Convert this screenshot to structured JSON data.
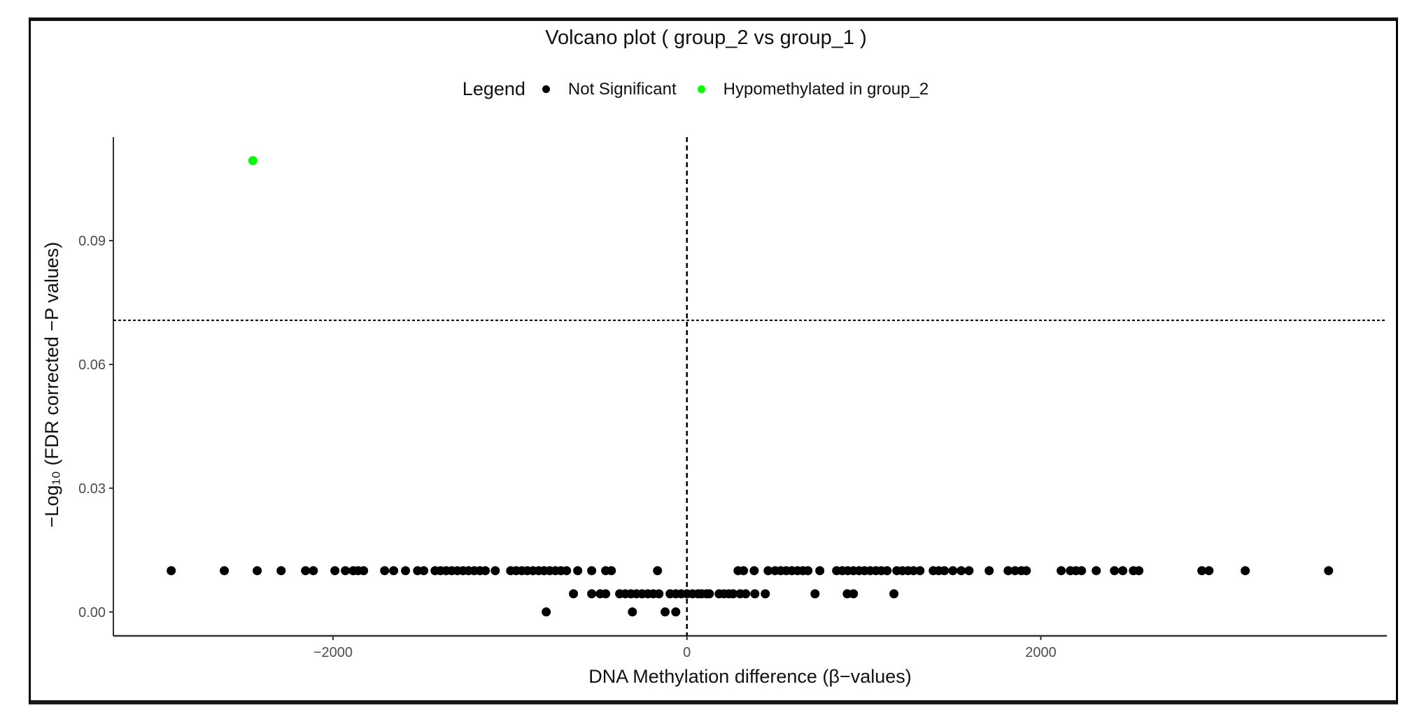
{
  "chart_data": {
    "type": "scatter",
    "title": "Volcano plot ( group_2 vs group_1 )",
    "xlabel": "DNA Methylation difference (β−values)",
    "ylabel": "−Log₁₀ (FDR corrected −P values)",
    "xlim": [
      -3241,
      3955
    ],
    "ylim": [
      -0.0058,
      0.1151
    ],
    "xticks": [
      -2000,
      0,
      2000
    ],
    "xtick_labels": [
      "−2000",
      "0",
      "2000"
    ],
    "yticks": [
      0.0,
      0.03,
      0.06,
      0.09
    ],
    "ytick_labels": [
      "0.00",
      "0.03",
      "0.06",
      "0.09"
    ],
    "grid": false,
    "legend": {
      "title": "Legend",
      "placement": "top",
      "entries": [
        {
          "label": "Not Significant",
          "color": "#000000"
        },
        {
          "label": "Hypomethylated in group_2",
          "color": "#00ff00"
        }
      ]
    },
    "reference_lines": {
      "vertical_x": 0,
      "horizontal_y": 0.0707
    },
    "series": [
      {
        "name": "Not Significant",
        "color": "#000000",
        "points": [
          [
            -2914,
            0.01
          ],
          [
            -2614,
            0.01
          ],
          [
            -2428,
            0.01
          ],
          [
            -2293,
            0.01
          ],
          [
            -2155,
            0.01
          ],
          [
            -2111,
            0.01
          ],
          [
            -1989,
            0.01
          ],
          [
            -1930,
            0.01
          ],
          [
            -1886,
            0.01
          ],
          [
            -1858,
            0.01
          ],
          [
            -1827,
            0.01
          ],
          [
            -1708,
            0.01
          ],
          [
            -1657,
            0.01
          ],
          [
            -1590,
            0.01
          ],
          [
            -1522,
            0.01
          ],
          [
            -1487,
            0.01
          ],
          [
            -1423,
            0.01
          ],
          [
            -1392,
            0.01
          ],
          [
            -1360,
            0.01
          ],
          [
            -1329,
            0.01
          ],
          [
            -1297,
            0.01
          ],
          [
            -1265,
            0.01
          ],
          [
            -1234,
            0.01
          ],
          [
            -1202,
            0.01
          ],
          [
            -1170,
            0.01
          ],
          [
            -1139,
            0.01
          ],
          [
            -1083,
            0.01
          ],
          [
            -996,
            0.01
          ],
          [
            -965,
            0.01
          ],
          [
            -933,
            0.01
          ],
          [
            -902,
            0.01
          ],
          [
            -870,
            0.01
          ],
          [
            -838,
            0.01
          ],
          [
            -807,
            0.01
          ],
          [
            -775,
            0.01
          ],
          [
            -743,
            0.01
          ],
          [
            -712,
            0.01
          ],
          [
            -680,
            0.01
          ],
          [
            -617,
            0.01
          ],
          [
            -538,
            0.01
          ],
          [
            -459,
            0.01
          ],
          [
            -427,
            0.01
          ],
          [
            -166,
            0.01
          ],
          [
            289,
            0.01
          ],
          [
            320,
            0.01
          ],
          [
            380,
            0.01
          ],
          [
            459,
            0.01
          ],
          [
            498,
            0.01
          ],
          [
            530,
            0.01
          ],
          [
            561,
            0.01
          ],
          [
            593,
            0.01
          ],
          [
            625,
            0.01
          ],
          [
            656,
            0.01
          ],
          [
            684,
            0.01
          ],
          [
            751,
            0.01
          ],
          [
            846,
            0.01
          ],
          [
            878,
            0.01
          ],
          [
            909,
            0.01
          ],
          [
            941,
            0.01
          ],
          [
            973,
            0.01
          ],
          [
            1004,
            0.01
          ],
          [
            1036,
            0.01
          ],
          [
            1068,
            0.01
          ],
          [
            1099,
            0.01
          ],
          [
            1131,
            0.01
          ],
          [
            1186,
            0.01
          ],
          [
            1218,
            0.01
          ],
          [
            1250,
            0.01
          ],
          [
            1281,
            0.01
          ],
          [
            1317,
            0.01
          ],
          [
            1392,
            0.01
          ],
          [
            1423,
            0.01
          ],
          [
            1455,
            0.01
          ],
          [
            1503,
            0.01
          ],
          [
            1550,
            0.01
          ],
          [
            1594,
            0.01
          ],
          [
            1708,
            0.01
          ],
          [
            1815,
            0.01
          ],
          [
            1854,
            0.01
          ],
          [
            1890,
            0.01
          ],
          [
            1918,
            0.01
          ],
          [
            2115,
            0.01
          ],
          [
            2167,
            0.01
          ],
          [
            2198,
            0.01
          ],
          [
            2230,
            0.01
          ],
          [
            2313,
            0.01
          ],
          [
            2416,
            0.01
          ],
          [
            2463,
            0.01
          ],
          [
            2523,
            0.01
          ],
          [
            2554,
            0.01
          ],
          [
            2910,
            0.01
          ],
          [
            2950,
            0.01
          ],
          [
            3155,
            0.01
          ],
          [
            3626,
            0.01
          ],
          [
            -641,
            0.0044
          ],
          [
            -538,
            0.0044
          ],
          [
            -490,
            0.0044
          ],
          [
            -459,
            0.0044
          ],
          [
            -380,
            0.0044
          ],
          [
            -348,
            0.0044
          ],
          [
            -316,
            0.0044
          ],
          [
            -285,
            0.0044
          ],
          [
            -253,
            0.0044
          ],
          [
            -221,
            0.0044
          ],
          [
            -190,
            0.0044
          ],
          [
            -158,
            0.0044
          ],
          [
            -95,
            0.0044
          ],
          [
            -63,
            0.0044
          ],
          [
            -32,
            0.0044
          ],
          [
            0,
            0.0044
          ],
          [
            32,
            0.0044
          ],
          [
            63,
            0.0044
          ],
          [
            83,
            0.0044
          ],
          [
            111,
            0.0044
          ],
          [
            127,
            0.0044
          ],
          [
            182,
            0.0044
          ],
          [
            210,
            0.0044
          ],
          [
            237,
            0.0044
          ],
          [
            261,
            0.0044
          ],
          [
            301,
            0.0044
          ],
          [
            332,
            0.0044
          ],
          [
            384,
            0.0044
          ],
          [
            443,
            0.0044
          ],
          [
            724,
            0.0044
          ],
          [
            906,
            0.0044
          ],
          [
            941,
            0.0044
          ],
          [
            1170,
            0.0044
          ],
          [
            -795,
            0.0
          ],
          [
            -308,
            0.0
          ],
          [
            -123,
            0.0
          ],
          [
            -63,
            0.0
          ]
        ]
      },
      {
        "name": "Hypomethylated in group_2",
        "color": "#00ff00",
        "points": [
          [
            -2453,
            0.1094
          ]
        ]
      }
    ]
  }
}
